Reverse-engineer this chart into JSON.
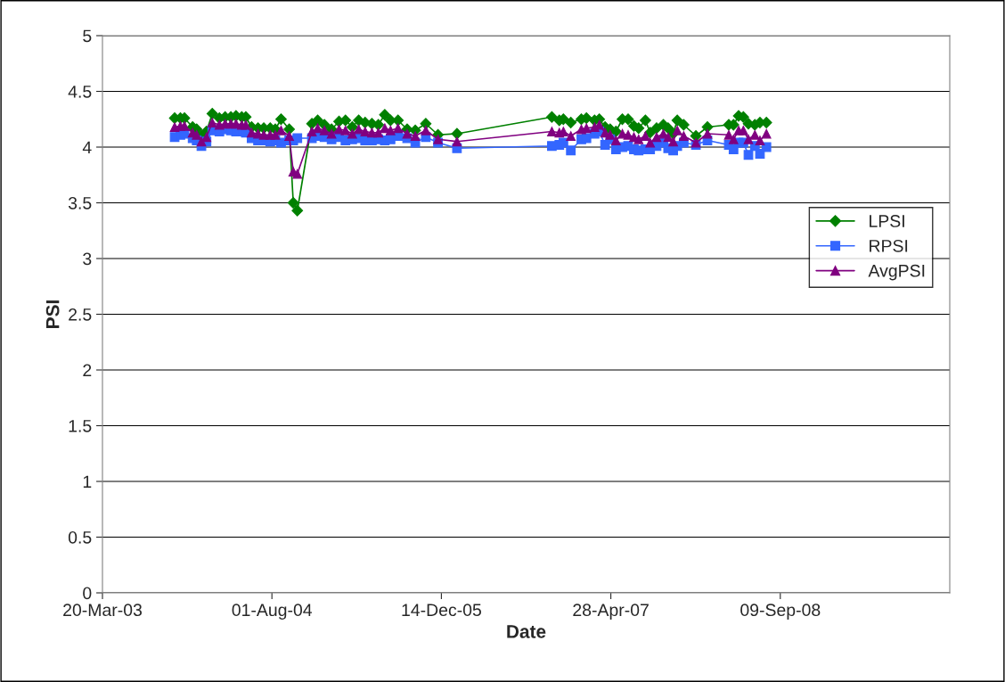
{
  "chart_data": {
    "type": "line",
    "xlabel": "Date",
    "ylabel": "PSI",
    "x": [
      "2003-10-19",
      "2003-11-05",
      "2003-11-17",
      "2003-12-11",
      "2003-12-23",
      "2004-01-06",
      "2004-01-21",
      "2004-02-07",
      "2004-02-28",
      "2004-03-16",
      "2004-04-02",
      "2004-04-17",
      "2004-05-04",
      "2004-05-16",
      "2004-06-02",
      "2004-06-21",
      "2004-07-08",
      "2004-07-27",
      "2004-08-11",
      "2004-08-28",
      "2004-09-21",
      "2004-10-03",
      "2004-10-15",
      "2004-11-27",
      "2004-12-14",
      "2005-01-03",
      "2005-01-24",
      "2005-02-15",
      "2005-03-06",
      "2005-03-26",
      "2005-04-14",
      "2005-05-03",
      "2005-05-23",
      "2005-06-11",
      "2005-06-30",
      "2005-07-17",
      "2005-08-08",
      "2005-09-04",
      "2005-09-28",
      "2005-10-29",
      "2005-12-04",
      "2006-01-29",
      "2006-11-05",
      "2006-11-27",
      "2006-12-09",
      "2006-12-31",
      "2007-01-31",
      "2007-02-15",
      "2007-03-11",
      "2007-03-25",
      "2007-04-11",
      "2007-04-26",
      "2007-05-13",
      "2007-06-01",
      "2007-06-18",
      "2007-07-05",
      "2007-07-19",
      "2007-08-08",
      "2007-08-22",
      "2007-09-10",
      "2007-09-30",
      "2007-10-14",
      "2007-10-29",
      "2007-11-10",
      "2007-11-29",
      "2008-01-04",
      "2008-02-07",
      "2008-04-10",
      "2008-04-24",
      "2008-05-09",
      "2008-05-23",
      "2008-06-07",
      "2008-06-26",
      "2008-07-11",
      "2008-07-30"
    ],
    "series": [
      {
        "name": "LPSI",
        "color": "#008000",
        "marker": "diamond",
        "values": [
          4.26,
          4.26,
          4.26,
          4.18,
          4.16,
          4.1,
          4.14,
          4.3,
          4.26,
          4.27,
          4.27,
          4.28,
          4.27,
          4.27,
          4.18,
          4.17,
          4.17,
          4.17,
          4.16,
          4.25,
          4.16,
          3.5,
          3.43,
          4.21,
          4.24,
          4.2,
          4.16,
          4.23,
          4.24,
          4.18,
          4.24,
          4.22,
          4.21,
          4.2,
          4.29,
          4.24,
          4.24,
          4.16,
          4.15,
          4.21,
          4.11,
          4.12,
          4.27,
          4.24,
          4.25,
          4.22,
          4.25,
          4.26,
          4.24,
          4.25,
          4.18,
          4.16,
          4.14,
          4.25,
          4.25,
          4.19,
          4.17,
          4.24,
          4.13,
          4.17,
          4.2,
          4.17,
          4.12,
          4.24,
          4.2,
          4.1,
          4.18,
          4.2,
          4.2,
          4.28,
          4.27,
          4.21,
          4.2,
          4.22,
          4.22
        ]
      },
      {
        "name": "RPSI",
        "color": "#3366ff",
        "marker": "square",
        "values": [
          4.09,
          4.11,
          4.12,
          4.08,
          4.06,
          4.01,
          4.05,
          4.15,
          4.14,
          4.16,
          4.15,
          4.14,
          4.14,
          4.13,
          4.08,
          4.06,
          4.06,
          4.05,
          4.06,
          4.04,
          4.06,
          4.06,
          4.08,
          4.08,
          4.1,
          4.09,
          4.07,
          4.09,
          4.06,
          4.07,
          4.08,
          4.06,
          4.06,
          4.07,
          4.06,
          4.07,
          4.1,
          4.08,
          4.04,
          4.09,
          4.04,
          3.99,
          4.01,
          4.02,
          4.04,
          3.97,
          4.07,
          4.08,
          4.12,
          4.14,
          4.02,
          4.07,
          3.98,
          4.0,
          4.01,
          3.98,
          3.97,
          3.98,
          3.98,
          4.01,
          4.04,
          3.99,
          3.97,
          4.01,
          4.04,
          4.02,
          4.06,
          4.02,
          3.98,
          4.04,
          4.04,
          3.93,
          4.01,
          3.94,
          4.0
        ]
      },
      {
        "name": "AvgPSI",
        "color": "#800080",
        "marker": "triangle",
        "values": [
          4.18,
          4.19,
          4.19,
          4.13,
          4.11,
          4.05,
          4.09,
          4.22,
          4.2,
          4.21,
          4.21,
          4.21,
          4.2,
          4.2,
          4.13,
          4.12,
          4.11,
          4.11,
          4.11,
          4.15,
          4.1,
          3.78,
          3.76,
          4.14,
          4.17,
          4.15,
          4.12,
          4.16,
          4.15,
          4.12,
          4.16,
          4.14,
          4.13,
          4.13,
          4.17,
          4.15,
          4.17,
          4.12,
          4.1,
          4.15,
          4.07,
          4.05,
          4.14,
          4.13,
          4.14,
          4.1,
          4.16,
          4.17,
          4.18,
          4.2,
          4.13,
          4.11,
          4.06,
          4.12,
          4.11,
          4.09,
          4.07,
          4.1,
          4.04,
          4.09,
          4.12,
          4.09,
          4.05,
          4.15,
          4.1,
          4.04,
          4.12,
          4.11,
          4.07,
          4.15,
          4.15,
          4.07,
          4.11,
          4.06,
          4.12
        ]
      }
    ],
    "xlim": [
      "2003-03-20",
      "2010-01-22"
    ],
    "xticks": [
      {
        "value": "2003-03-20",
        "label": "20-Mar-03"
      },
      {
        "value": "2004-08-01",
        "label": "01-Aug-04"
      },
      {
        "value": "2005-12-14",
        "label": "14-Dec-05"
      },
      {
        "value": "2007-04-28",
        "label": "28-Apr-07"
      },
      {
        "value": "2008-09-09",
        "label": "09-Sep-08"
      }
    ],
    "ylim": [
      0,
      5
    ],
    "yticks": [
      0,
      0.5,
      1,
      1.5,
      2,
      2.5,
      3,
      3.5,
      4,
      4.5,
      5
    ],
    "grid": "y",
    "legend": "right",
    "line_style": "solid"
  }
}
